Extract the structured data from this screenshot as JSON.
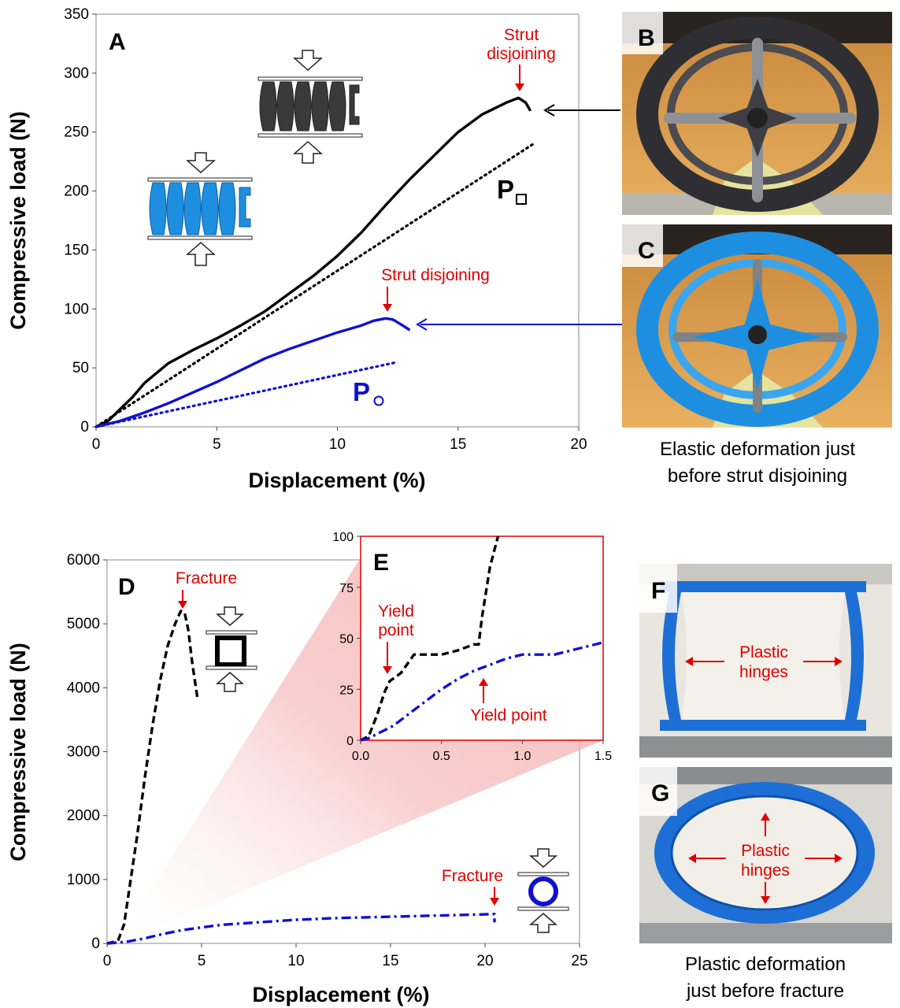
{
  "panels": {
    "A": "A",
    "B": "B",
    "C": "C",
    "D": "D",
    "E": "E",
    "F": "F",
    "G": "G"
  },
  "captions": {
    "bc_line1": "Elastic deformation just",
    "bc_line2": "before strut disjoining",
    "fg_line1": "Plastic deformation",
    "fg_line2": "just before fracture"
  },
  "photo_annotations": {
    "plastic_hinges_l1": "Plastic",
    "plastic_hinges_l2": "hinges"
  },
  "colors": {
    "black_series": "#000000",
    "blue_series": "#1010d0",
    "annotation": "#e00000",
    "model_black": "#3a3a3a",
    "model_blue": "#1e8fe0",
    "wedge": "#f4b0b0"
  },
  "chart_data": [
    {
      "id": "A",
      "type": "line",
      "xlabel": "Displacement (%)",
      "ylabel": "Compressive load (N)",
      "xlim": [
        0,
        20
      ],
      "ylim": [
        0,
        350
      ],
      "xticks": [
        0,
        5,
        10,
        15,
        20
      ],
      "yticks": [
        0,
        50,
        100,
        150,
        200,
        250,
        300,
        350
      ],
      "grid": false,
      "series": [
        {
          "name": "",
          "color": "#000000",
          "style": "solid",
          "x": [
            0,
            0.5,
            1,
            1.5,
            2,
            3,
            4,
            5,
            6,
            7,
            8,
            9,
            10,
            11,
            12,
            13,
            14,
            15,
            16,
            16.5,
            17,
            17.5,
            17.8,
            18
          ],
          "y": [
            0,
            5,
            15,
            25,
            37,
            54,
            65,
            75,
            86,
            98,
            113,
            128,
            145,
            165,
            188,
            210,
            230,
            250,
            265,
            270,
            275,
            279,
            275,
            268
          ]
        },
        {
          "name": "P□",
          "color": "#000000",
          "style": "dotted",
          "x": [
            0,
            18.2
          ],
          "y": [
            0,
            241
          ]
        },
        {
          "name": "",
          "color": "#1010d0",
          "style": "solid",
          "x": [
            0,
            1,
            2,
            3,
            4,
            5,
            6,
            7,
            8,
            9,
            10,
            11,
            11.5,
            12,
            12.3,
            12.7,
            13
          ],
          "y": [
            0,
            5,
            12,
            20,
            29,
            38,
            48,
            58,
            66,
            73,
            80,
            86,
            90,
            92,
            91,
            86,
            82
          ]
        },
        {
          "name": "P○",
          "color": "#1010d0",
          "style": "dotted",
          "x": [
            0,
            12.5
          ],
          "y": [
            0,
            55
          ]
        }
      ],
      "labels": {
        "p_square": "P",
        "p_circle": "P"
      },
      "annotations": [
        {
          "text_l1": "Strut",
          "text_l2": "disjoining",
          "x": 17.5,
          "y": 279
        },
        {
          "text": "Strut disjoining",
          "x": 12.1,
          "y": 92
        }
      ]
    },
    {
      "id": "D",
      "type": "line",
      "xlabel": "Displacement (%)",
      "ylabel": "Compressive load (N)",
      "xlim": [
        0,
        25
      ],
      "ylim": [
        0,
        6000
      ],
      "xticks": [
        0,
        5,
        10,
        15,
        20,
        25
      ],
      "yticks": [
        0,
        1000,
        2000,
        3000,
        4000,
        5000,
        6000
      ],
      "grid": false,
      "series": [
        {
          "name": "",
          "color": "#000000",
          "style": "dashed",
          "x": [
            0,
            0.3,
            0.6,
            0.9,
            1.2,
            1.6,
            2.0,
            2.4,
            2.8,
            3.2,
            3.6,
            3.9,
            4.1,
            4.3,
            4.5,
            4.7,
            4.8
          ],
          "y": [
            0,
            20,
            60,
            300,
            900,
            1700,
            2600,
            3400,
            4100,
            4650,
            5000,
            5200,
            5180,
            4900,
            4400,
            4000,
            3800
          ]
        },
        {
          "name": "",
          "color": "#1010d0",
          "style": "dashdot",
          "x": [
            0,
            1,
            2,
            3,
            4,
            5,
            6,
            8,
            10,
            12,
            14,
            16,
            18,
            20,
            20.5,
            20.5
          ],
          "y": [
            0,
            25,
            80,
            150,
            210,
            250,
            290,
            330,
            370,
            395,
            410,
            425,
            440,
            455,
            460,
            330
          ]
        }
      ],
      "annotations": [
        {
          "text": "Fracture",
          "x": 4.0,
          "y": 5200
        },
        {
          "text": "Fracture",
          "x": 20.5,
          "y": 460
        }
      ]
    },
    {
      "id": "E",
      "type": "line",
      "xlim": [
        0,
        1.5
      ],
      "ylim": [
        0,
        100
      ],
      "xticks": [
        "0.0",
        "0.5",
        "1.0",
        "1.5"
      ],
      "yticks": [
        0,
        25,
        50,
        75,
        100
      ],
      "grid": false,
      "series": [
        {
          "name": "",
          "color": "#000000",
          "style": "dashed",
          "x": [
            0,
            0.05,
            0.1,
            0.15,
            0.18,
            0.25,
            0.33,
            0.36,
            0.5,
            0.6,
            0.7,
            0.73,
            0.75,
            0.8,
            0.85
          ],
          "y": [
            0,
            2,
            12,
            24,
            29,
            33,
            42,
            42,
            42,
            44,
            47,
            47,
            60,
            85,
            100
          ]
        },
        {
          "name": "",
          "color": "#1010d0",
          "style": "dashdot",
          "x": [
            0,
            0.05,
            0.1,
            0.2,
            0.3,
            0.4,
            0.5,
            0.6,
            0.7,
            0.8,
            0.9,
            1.0,
            1.1,
            1.2,
            1.3,
            1.4,
            1.5
          ],
          "y": [
            0,
            1,
            3,
            7,
            13,
            19,
            25,
            30,
            34,
            37,
            40,
            42,
            42,
            42,
            44,
            46,
            48
          ]
        }
      ],
      "annotations": [
        {
          "text_l1": "Yield",
          "text_l2": "point",
          "x": 0.17,
          "y": 29
        },
        {
          "text": "Yield point",
          "x": 0.78,
          "y": 37
        }
      ]
    }
  ]
}
